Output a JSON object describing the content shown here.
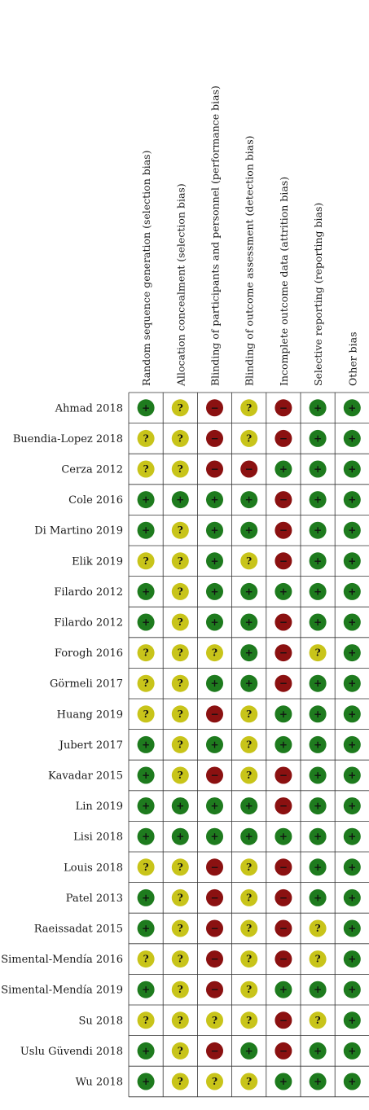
{
  "chart_data": {
    "type": "table",
    "columns": [
      "Random sequence generation (selection bias)",
      "Allocation concealment (selection bias)",
      "Blinding of participants and personnel (performance bias)",
      "Blinding of outcome assessment (detection bias)",
      "Incomplete outcome data (attrition bias)",
      "Selective reporting (reporting bias)",
      "Other bias"
    ],
    "rows": [
      "Ahmad 2018",
      "Buendia-Lopez 2018",
      "Cerza 2012",
      "Cole 2016",
      "Di Martino 2019",
      "Elik 2019",
      "Filardo 2012",
      "Filardo 2012",
      "Forogh 2016",
      "Görmeli 2017",
      "Huang 2019",
      "Jubert 2017",
      "Kavadar 2015",
      "Lin 2019",
      "Lisi 2018",
      "Louis 2018",
      "Patel 2013",
      "Raeissadat 2015",
      "Simental-Mendía 2016",
      "Simental-Mendía 2019",
      "Su 2018",
      "Uslu Güvendi 2018",
      "Wu 2018"
    ],
    "values": [
      [
        "+",
        "?",
        "-",
        "?",
        "-",
        "+",
        "+"
      ],
      [
        "?",
        "?",
        "-",
        "?",
        "-",
        "+",
        "+"
      ],
      [
        "?",
        "?",
        "-",
        "-",
        "+",
        "+",
        "+"
      ],
      [
        "+",
        "+",
        "+",
        "+",
        "-",
        "+",
        "+"
      ],
      [
        "+",
        "?",
        "+",
        "+",
        "-",
        "+",
        "+"
      ],
      [
        "?",
        "?",
        "+",
        "?",
        "-",
        "+",
        "+"
      ],
      [
        "+",
        "?",
        "+",
        "+",
        "+",
        "+",
        "+"
      ],
      [
        "+",
        "?",
        "+",
        "+",
        "-",
        "+",
        "+"
      ],
      [
        "?",
        "?",
        "?",
        "+",
        "-",
        "?",
        "+"
      ],
      [
        "?",
        "?",
        "+",
        "+",
        "-",
        "+",
        "+"
      ],
      [
        "?",
        "?",
        "-",
        "?",
        "+",
        "+",
        "+"
      ],
      [
        "+",
        "?",
        "+",
        "?",
        "+",
        "+",
        "+"
      ],
      [
        "+",
        "?",
        "-",
        "?",
        "-",
        "+",
        "+"
      ],
      [
        "+",
        "+",
        "+",
        "+",
        "-",
        "+",
        "+"
      ],
      [
        "+",
        "+",
        "+",
        "+",
        "+",
        "+",
        "+"
      ],
      [
        "?",
        "?",
        "-",
        "?",
        "-",
        "+",
        "+"
      ],
      [
        "+",
        "?",
        "-",
        "?",
        "-",
        "+",
        "+"
      ],
      [
        "+",
        "?",
        "-",
        "?",
        "-",
        "?",
        "+"
      ],
      [
        "?",
        "?",
        "-",
        "?",
        "-",
        "?",
        "+"
      ],
      [
        "+",
        "?",
        "-",
        "?",
        "+",
        "+",
        "+"
      ],
      [
        "?",
        "?",
        "?",
        "?",
        "-",
        "?",
        "+"
      ],
      [
        "+",
        "?",
        "-",
        "+",
        "-",
        "+",
        "+"
      ],
      [
        "+",
        "?",
        "?",
        "?",
        "+",
        "+",
        "+"
      ]
    ],
    "legend": {
      "+": {
        "symbol": "+",
        "color": "#1e7b1e"
      },
      "?": {
        "symbol": "?",
        "color": "#c8c41a"
      },
      "-": {
        "symbol": "−",
        "color": "#8b1111"
      }
    }
  }
}
